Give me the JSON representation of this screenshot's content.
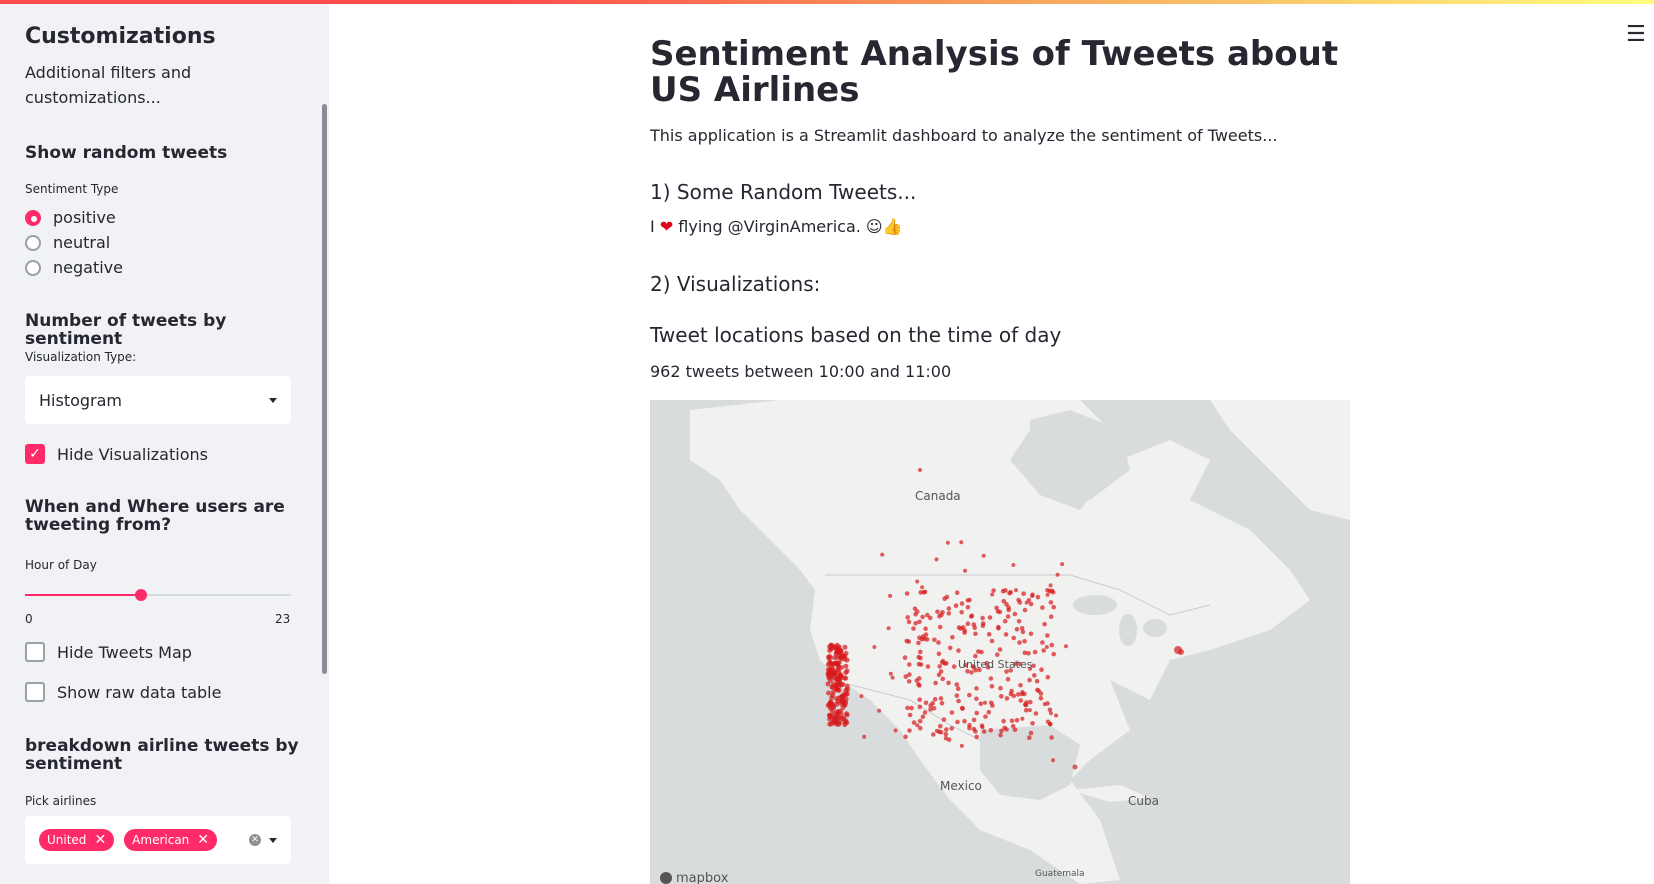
{
  "sidebar": {
    "title": "Customizations",
    "subtitle": "Additional filters and customizations...",
    "random": {
      "header": "Show random tweets",
      "label": "Sentiment Type",
      "options": [
        "positive",
        "neutral",
        "negative"
      ],
      "selected": "positive"
    },
    "count": {
      "header": "Number of tweets by sentiment",
      "label": "Visualization Type:",
      "selected": "Histogram",
      "hide_label": "Hide Visualizations",
      "hide_checked": true
    },
    "when": {
      "header": "When and Where users are tweeting from?",
      "label": "Hour of Day",
      "min": "0",
      "max": "23",
      "value": 10,
      "hide_map_label": "Hide Tweets Map",
      "hide_map_checked": false,
      "raw_label": "Show raw data table",
      "raw_checked": false
    },
    "breakdown": {
      "header": "breakdown airline tweets by sentiment",
      "label": "Pick airlines",
      "tags": [
        "United",
        "American"
      ]
    }
  },
  "main": {
    "title": "Sentiment Analysis of Tweets about US Airlines",
    "intro": "This application is a Streamlit dashboard to analyze the sentiment of Tweets...",
    "random_header": "1) Some Random Tweets...",
    "tweet_pre": "I ",
    "tweet_post": " flying @VirginAmerica. ☺👍",
    "viz_header": "2) Visualizations:",
    "map_header": "Tweet locations based on the time of day",
    "map_caption": "962 tweets between 10:00 and 11:00",
    "map_labels": {
      "canada": "Canada",
      "us": "United States",
      "mexico": "Mexico",
      "cuba": "Cuba",
      "guatemala": "Guatemala",
      "attribution": "mapbox"
    }
  },
  "colors": {
    "accent": "#ff2b69",
    "points": "#d7191c",
    "sidebar_bg": "#f0f2f6"
  }
}
